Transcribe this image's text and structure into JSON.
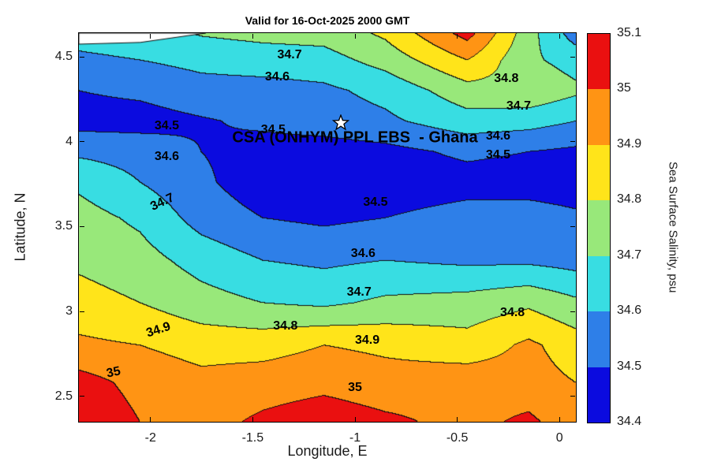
{
  "chart_data": {
    "type": "filled-contour",
    "title": "Valid for 16-Oct-2025 2000 GMT",
    "xlabel": "Longitude, E",
    "ylabel": "Latitude, N",
    "xlim": [
      -2.35,
      0.08
    ],
    "ylim": [
      2.35,
      4.64
    ],
    "xticks": [
      -2,
      -1.5,
      -1,
      -0.5,
      0
    ],
    "yticks": [
      2.5,
      3,
      3.5,
      4,
      4.5
    ],
    "levels": [
      34.4,
      34.5,
      34.6,
      34.7,
      34.8,
      34.9,
      35.0,
      35.1
    ],
    "band_colors": [
      "#0b0bdf",
      "#2e7fe8",
      "#38dde2",
      "#98e87a",
      "#ffe41a",
      "#ff9414",
      "#ea1010"
    ],
    "contour_line_color": "#111111",
    "colorbar": {
      "label": "Sea Surface Salinity, psu",
      "ticks": [
        "35.1",
        "35",
        "34.9",
        "34.8",
        "34.7",
        "34.6",
        "34.5",
        "34.4"
      ]
    },
    "grid": {
      "lons": [
        -2.35,
        -2.05,
        -1.75,
        -1.45,
        -1.15,
        -0.85,
        -0.45,
        -0.15,
        0.08
      ],
      "lats": [
        4.64,
        4.48,
        4.3,
        4.12,
        3.94,
        3.76,
        3.55,
        3.3,
        3.05,
        2.8,
        2.58,
        2.35
      ],
      "values": [
        [
          34.64,
          34.66,
          34.71,
          34.73,
          34.74,
          34.82,
          35.04,
          34.74,
          34.55
        ],
        [
          34.58,
          34.6,
          34.63,
          34.65,
          34.66,
          34.74,
          34.9,
          34.72,
          34.66
        ],
        [
          34.5,
          34.52,
          34.56,
          34.56,
          34.58,
          34.63,
          34.76,
          34.78,
          34.72
        ],
        [
          34.46,
          34.46,
          34.49,
          34.52,
          34.55,
          34.58,
          34.66,
          34.64,
          34.6
        ],
        [
          34.58,
          34.56,
          34.5,
          34.46,
          34.45,
          34.47,
          34.52,
          34.5,
          34.48
        ],
        [
          34.68,
          34.6,
          34.52,
          34.44,
          34.42,
          34.44,
          34.46,
          34.45,
          34.44
        ],
        [
          34.74,
          34.68,
          34.56,
          34.5,
          34.48,
          34.5,
          34.54,
          34.55,
          34.52
        ],
        [
          34.78,
          34.74,
          34.66,
          34.6,
          34.58,
          34.6,
          34.58,
          34.58,
          34.56
        ],
        [
          34.84,
          34.8,
          34.74,
          34.7,
          34.68,
          34.72,
          34.74,
          34.78,
          34.72
        ],
        [
          34.92,
          34.9,
          34.86,
          34.86,
          34.9,
          34.88,
          34.84,
          34.92,
          34.85
        ],
        [
          35.04,
          34.97,
          34.93,
          34.95,
          34.97,
          34.94,
          34.96,
          34.94,
          34.9
        ],
        [
          35.08,
          35.0,
          34.96,
          35.02,
          35.06,
          35.02,
          34.97,
          35.02,
          34.94
        ]
      ]
    },
    "mask_polygon": [
      [
        -2.35,
        4.64
      ],
      [
        -1.73,
        4.64
      ],
      [
        -2.05,
        4.585
      ],
      [
        -2.35,
        4.575
      ]
    ],
    "contour_labels": [
      {
        "text": "34.7",
        "lon": -1.32,
        "lat": 4.51,
        "rot": 0
      },
      {
        "text": "34.6",
        "lon": -1.38,
        "lat": 4.38,
        "rot": 0
      },
      {
        "text": "34.8",
        "lon": -0.26,
        "lat": 4.37,
        "rot": 0
      },
      {
        "text": "34.7",
        "lon": -0.2,
        "lat": 4.21,
        "rot": 0
      },
      {
        "text": "34.6",
        "lon": -0.3,
        "lat": 4.03,
        "rot": 0
      },
      {
        "text": "34.5",
        "lon": -0.3,
        "lat": 3.92,
        "rot": 0
      },
      {
        "text": "34.5",
        "lon": -1.4,
        "lat": 4.07,
        "rot": 0
      },
      {
        "text": "34.5",
        "lon": -1.92,
        "lat": 4.09,
        "rot": 0
      },
      {
        "text": "34.6",
        "lon": -1.92,
        "lat": 3.91,
        "rot": 0
      },
      {
        "text": "34.7",
        "lon": -1.94,
        "lat": 3.64,
        "rot": -25
      },
      {
        "text": "34.5",
        "lon": -0.9,
        "lat": 3.64,
        "rot": 0
      },
      {
        "text": "34.6",
        "lon": -0.96,
        "lat": 3.34,
        "rot": 0
      },
      {
        "text": "34.7",
        "lon": -0.98,
        "lat": 3.11,
        "rot": 0
      },
      {
        "text": "34.8",
        "lon": -1.34,
        "lat": 2.91,
        "rot": 0
      },
      {
        "text": "34.8",
        "lon": -0.23,
        "lat": 2.99,
        "rot": 0
      },
      {
        "text": "34.9",
        "lon": -1.96,
        "lat": 2.89,
        "rot": -18
      },
      {
        "text": "34.9",
        "lon": -0.94,
        "lat": 2.83,
        "rot": 0
      },
      {
        "text": "35",
        "lon": -2.18,
        "lat": 2.64,
        "rot": -12
      },
      {
        "text": "35",
        "lon": -1.0,
        "lat": 2.55,
        "rot": 0
      }
    ],
    "marker": {
      "type": "star",
      "lon": -1.07,
      "lat": 4.11
    },
    "annotation": {
      "text": "CSA (ONHYM) PPL EBS  - Ghana",
      "lon": -1.0,
      "lat": 4.02
    }
  }
}
